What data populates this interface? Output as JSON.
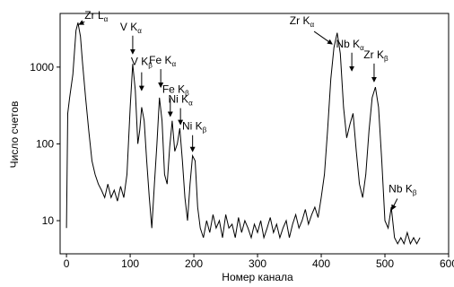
{
  "chart_data": {
    "type": "line",
    "x_label": "Номер канала",
    "y_label": "Число счетов",
    "color": "#000000",
    "log_y": true,
    "grid": false,
    "xlim": [
      -10,
      600
    ],
    "xticks": [
      0,
      100,
      200,
      300,
      400,
      500,
      600
    ],
    "ylim": [
      3.7,
      5000
    ],
    "yticks": [
      10,
      100,
      1000
    ],
    "x": [
      0,
      2,
      5,
      10,
      15,
      18,
      22,
      25,
      30,
      35,
      40,
      45,
      50,
      55,
      60,
      65,
      70,
      75,
      80,
      85,
      90,
      95,
      100,
      104,
      108,
      112,
      115,
      118,
      122,
      126,
      130,
      134,
      138,
      142,
      146,
      150,
      154,
      158,
      162,
      166,
      170,
      174,
      178,
      182,
      186,
      190,
      194,
      198,
      202,
      206,
      210,
      215,
      220,
      225,
      230,
      235,
      240,
      245,
      250,
      255,
      260,
      265,
      270,
      275,
      280,
      285,
      290,
      295,
      300,
      305,
      310,
      315,
      320,
      325,
      330,
      335,
      340,
      345,
      350,
      355,
      360,
      365,
      370,
      375,
      380,
      385,
      390,
      395,
      400,
      405,
      410,
      415,
      420,
      425,
      430,
      435,
      440,
      445,
      450,
      455,
      460,
      465,
      470,
      475,
      480,
      485,
      490,
      495,
      500,
      505,
      510,
      515,
      520,
      525,
      530,
      535,
      540,
      545,
      550,
      555
    ],
    "values": [
      8,
      250,
      400,
      800,
      3000,
      3800,
      2500,
      1200,
      400,
      150,
      60,
      40,
      30,
      25,
      20,
      30,
      20,
      25,
      18,
      28,
      20,
      40,
      300,
      1100,
      500,
      100,
      150,
      300,
      200,
      60,
      20,
      8,
      30,
      100,
      400,
      200,
      40,
      30,
      90,
      200,
      80,
      100,
      160,
      60,
      20,
      10,
      30,
      70,
      60,
      15,
      8,
      6,
      10,
      7,
      12,
      8,
      10,
      6,
      12,
      8,
      9,
      6,
      11,
      7,
      10,
      8,
      6,
      9,
      7,
      10,
      6,
      8,
      11,
      7,
      9,
      6,
      8,
      10,
      6,
      9,
      12,
      8,
      10,
      14,
      9,
      12,
      15,
      11,
      20,
      40,
      150,
      700,
      1800,
      2800,
      1500,
      300,
      120,
      180,
      250,
      80,
      30,
      20,
      40,
      150,
      400,
      550,
      300,
      60,
      10,
      8,
      15,
      6,
      5,
      6,
      5,
      7,
      5,
      6,
      5,
      6
    ],
    "annotations": [
      {
        "text": "Zr L",
        "sub": "α",
        "x": 20,
        "y": 3600
      },
      {
        "text": "V K",
        "sub": "α",
        "x": 104,
        "y": 1500
      },
      {
        "text": "V K",
        "sub": "β",
        "x": 118,
        "y": 500
      },
      {
        "text": "Fe K",
        "sub": "α",
        "x": 148,
        "y": 550
      },
      {
        "text": "Fe K",
        "sub": "β",
        "x": 163,
        "y": 230
      },
      {
        "text": "Ni K",
        "sub": "α",
        "x": 179,
        "y": 180
      },
      {
        "text": "Ni K",
        "sub": "β",
        "x": 198,
        "y": 80
      },
      {
        "text": "Zr K",
        "sub": "α",
        "x": 417,
        "y": 2000
      },
      {
        "text": "Nb K",
        "sub": "α",
        "x": 448,
        "y": 900
      },
      {
        "text": "Zr K",
        "sub": "β",
        "x": 483,
        "y": 650
      },
      {
        "text": "Nb K",
        "sub": "β",
        "x": 511,
        "y": 14
      }
    ]
  }
}
